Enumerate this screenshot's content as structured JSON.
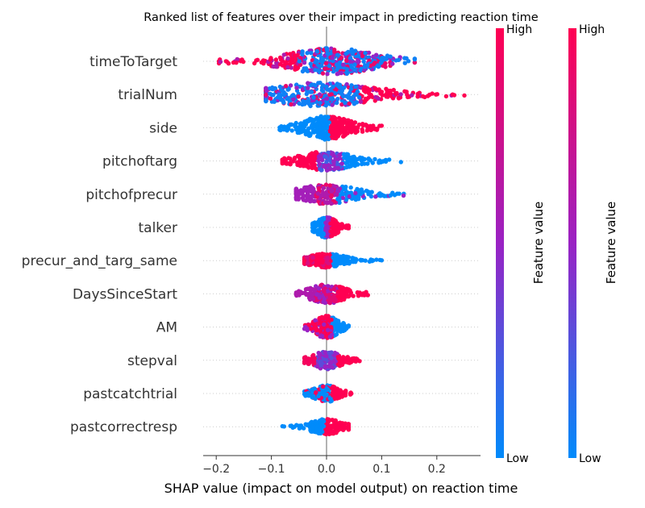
{
  "chart_data": {
    "type": "scatter",
    "subtype": "shap-beeswarm-summary",
    "title": "Ranked list of features over their impact in predicting reaction time",
    "xlabel": "SHAP value (impact on model output) on reaction time",
    "ylabel": "",
    "xlim": [
      -0.22,
      0.27
    ],
    "xticks": [
      -0.2,
      -0.1,
      0.0,
      0.1,
      0.2
    ],
    "xtick_labels": [
      "−0.2",
      "−0.1",
      "0.0",
      "0.1",
      "0.2"
    ],
    "grid": "horizontal dotted per feature",
    "colormap": {
      "low": "#008bfb",
      "mid": "#9a22c4",
      "high": "#ff0052"
    },
    "colorbars": [
      {
        "label": "Feature value",
        "high": "High",
        "low": "Low"
      },
      {
        "label": "Feature value",
        "high": "High",
        "low": "Low"
      }
    ],
    "features": [
      {
        "name": "timeToTarget",
        "min": -0.195,
        "max": 0.16,
        "core_lo": -0.11,
        "core_hi": 0.13,
        "center": 0.01,
        "width": 0.95,
        "color_mode": "mix-high-left",
        "n": 420
      },
      {
        "name": "trialNum",
        "min": -0.11,
        "max": 0.25,
        "core_lo": -0.1,
        "core_hi": 0.2,
        "center": -0.01,
        "width": 0.85,
        "color_mode": "low-left-high-right",
        "n": 400
      },
      {
        "name": "side",
        "min": -0.085,
        "max": 0.1,
        "core_lo": -0.06,
        "core_hi": 0.07,
        "center": 0.0,
        "width": 0.85,
        "color_mode": "side",
        "n": 340
      },
      {
        "name": "pitchoftarg",
        "min": -0.08,
        "max": 0.135,
        "core_lo": -0.04,
        "core_hi": 0.1,
        "center": 0.0,
        "width": 0.7,
        "color_mode": "high-left-low-right",
        "n": 260
      },
      {
        "name": "pitchofprecur",
        "min": -0.055,
        "max": 0.14,
        "core_lo": -0.03,
        "core_hi": 0.13,
        "center": 0.0,
        "width": 0.7,
        "color_mode": "mix-low-right",
        "n": 260
      },
      {
        "name": "talker",
        "min": -0.025,
        "max": 0.04,
        "core_lo": -0.02,
        "core_hi": 0.035,
        "center": 0.0,
        "width": 0.75,
        "color_mode": "talker",
        "n": 200
      },
      {
        "name": "precur_and_targ_same",
        "min": -0.04,
        "max": 0.1,
        "core_lo": -0.01,
        "core_hi": 0.1,
        "center": 0.0,
        "width": 0.5,
        "color_mode": "same",
        "n": 230
      },
      {
        "name": "DaysSinceStart",
        "min": -0.055,
        "max": 0.075,
        "core_lo": -0.04,
        "core_hi": 0.06,
        "center": 0.0,
        "width": 0.7,
        "color_mode": "mix",
        "n": 230
      },
      {
        "name": "AM",
        "min": -0.04,
        "max": 0.04,
        "core_lo": -0.03,
        "core_hi": 0.035,
        "center": 0.0,
        "width": 0.8,
        "color_mode": "am",
        "n": 200
      },
      {
        "name": "stepval",
        "min": -0.04,
        "max": 0.06,
        "core_lo": -0.03,
        "core_hi": 0.05,
        "center": 0.0,
        "width": 0.65,
        "color_mode": "stepval",
        "n": 200
      },
      {
        "name": "pastcatchtrial",
        "min": -0.04,
        "max": 0.045,
        "core_lo": -0.03,
        "core_hi": 0.04,
        "center": 0.0,
        "width": 0.6,
        "color_mode": "catch",
        "n": 190
      },
      {
        "name": "pastcorrectresp",
        "min": -0.08,
        "max": 0.04,
        "core_lo": -0.06,
        "core_hi": 0.03,
        "center": 0.0,
        "width": 0.55,
        "color_mode": "correct",
        "n": 190
      }
    ]
  }
}
